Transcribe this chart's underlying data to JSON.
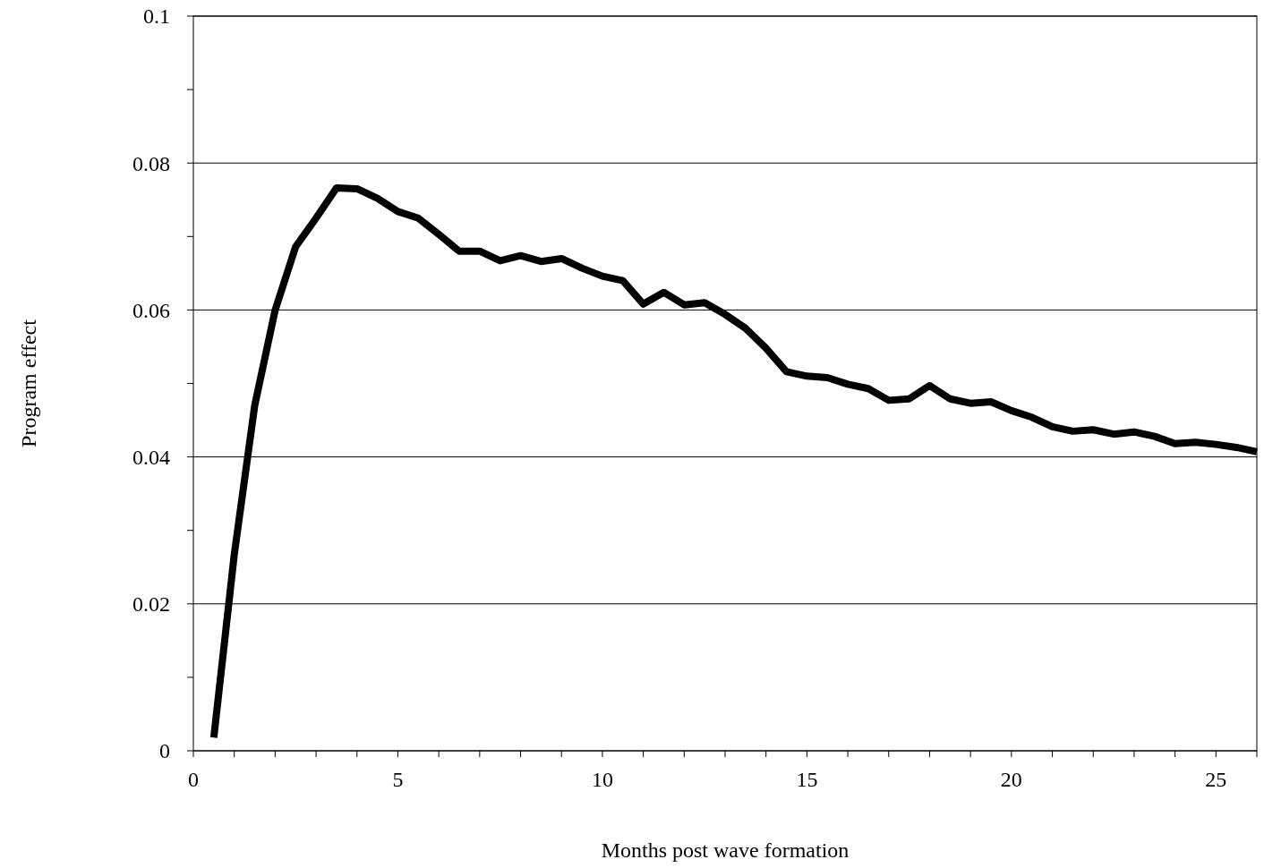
{
  "chart_data": {
    "type": "line",
    "xlabel": "Months post wave formation",
    "ylabel": "Program effect",
    "x": [
      0.5,
      1,
      1.5,
      2,
      2.5,
      3,
      3.5,
      4,
      4.5,
      5,
      5.5,
      6,
      6.5,
      7,
      7.5,
      8,
      8.5,
      9,
      9.5,
      10,
      10.5,
      11,
      11.5,
      12,
      12.5,
      13,
      13.5,
      14,
      14.5,
      15,
      15.5,
      16,
      16.5,
      17,
      17.5,
      18,
      18.5,
      19,
      19.5,
      20,
      20.5,
      21,
      21.5,
      22,
      22.5,
      23,
      23.5,
      24,
      24.5,
      25,
      25.5,
      26
    ],
    "series": [
      {
        "color": "#000000",
        "values": [
          0.0018,
          0.0267,
          0.047,
          0.06,
          0.0686,
          0.0725,
          0.0766,
          0.0765,
          0.0752,
          0.0734,
          0.0725,
          0.0703,
          0.068,
          0.068,
          0.0667,
          0.0674,
          0.0666,
          0.067,
          0.0657,
          0.0646,
          0.064,
          0.0608,
          0.0624,
          0.0607,
          0.061,
          0.0594,
          0.0575,
          0.0548,
          0.0516,
          0.051,
          0.0508,
          0.0499,
          0.0493,
          0.0477,
          0.0479,
          0.0497,
          0.0479,
          0.0473,
          0.0475,
          0.0463,
          0.0454,
          0.0441,
          0.0435,
          0.0437,
          0.0431,
          0.0434,
          0.0428,
          0.0418,
          0.042,
          0.0417,
          0.0413,
          0.0407
        ]
      }
    ],
    "xlim": [
      0,
      26
    ],
    "xticks": [
      0,
      {
        "value": 1,
        "label": null
      },
      {
        "value": 2,
        "label": null
      },
      {
        "value": 3,
        "label": null
      },
      {
        "value": 4,
        "label": null
      },
      5,
      {
        "value": 6,
        "label": null
      },
      {
        "value": 7,
        "label": null
      },
      {
        "value": 8,
        "label": null
      },
      {
        "value": 9,
        "label": null
      },
      10,
      {
        "value": 11,
        "label": null
      },
      {
        "value": 12,
        "label": null
      },
      {
        "value": 13,
        "label": null
      },
      {
        "value": 14,
        "label": null
      },
      15,
      {
        "value": 16,
        "label": null
      },
      {
        "value": 17,
        "label": null
      },
      {
        "value": 18,
        "label": null
      },
      {
        "value": 19,
        "label": null
      },
      20,
      {
        "value": 21,
        "label": null
      },
      {
        "value": 22,
        "label": null
      },
      {
        "value": 23,
        "label": null
      },
      {
        "value": 24,
        "label": null
      },
      25,
      {
        "value": 26,
        "label": null
      }
    ],
    "ylim": [
      0,
      0.1
    ],
    "yticks": [
      0,
      {
        "value": 0.01,
        "label": null
      },
      0.02,
      {
        "value": 0.03,
        "label": null
      },
      0.04,
      {
        "value": 0.05,
        "label": null
      },
      0.06,
      {
        "value": 0.07,
        "label": null
      },
      0.08,
      {
        "value": 0.09,
        "label": null
      },
      0.1
    ],
    "grid": "y",
    "marker": "none",
    "line_style": "solid"
  }
}
